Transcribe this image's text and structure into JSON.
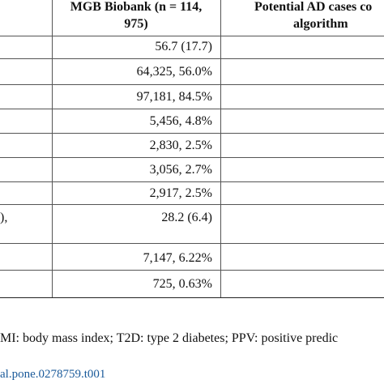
{
  "table": {
    "headers": {
      "col1": [
        "MGB Biobank (n = 114,",
        "975)"
      ],
      "col2": [
        "Potential AD cases co",
        "algorithm"
      ]
    },
    "rows": [
      {
        "label": "",
        "value": "56.7 (17.7)"
      },
      {
        "label": "",
        "value": "64,325, 56.0%"
      },
      {
        "label": "",
        "value": "97,181, 84.5%"
      },
      {
        "label": "",
        "value": "5,456, 4.8%"
      },
      {
        "label": "",
        "value": "2,830, 2.5%"
      },
      {
        "label": "",
        "value": "3,056, 2.7%"
      },
      {
        "label": "",
        "value": "2,917, 2.5%"
      },
      {
        "label": "),",
        "value": "28.2 (6.4)"
      },
      {
        "label": "",
        "value": "7,147, 6.22%"
      },
      {
        "label": "",
        "value": "725, 0.63%"
      }
    ]
  },
  "footnote": "MI: body mass index; T2D: type 2 diabetes; PPV: positive predic",
  "doi": "al.pone.0278759.t001"
}
